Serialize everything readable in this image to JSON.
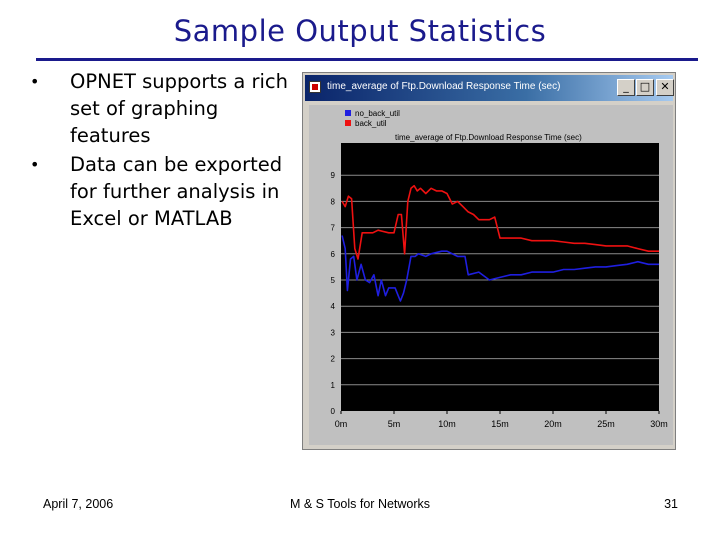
{
  "slide": {
    "title": "Sample Output Statistics",
    "bullets": [
      "OPNET supports a rich set of graphing features",
      "Data can be exported for further analysis in Excel or MATLAB"
    ],
    "footer": {
      "date": "April 7, 2006",
      "center": "M & S Tools for Networks",
      "page": "31"
    }
  },
  "window": {
    "title": "time_average of Ftp.Download Response Time (sec)",
    "buttons": {
      "minimize": "_",
      "maximize": "□",
      "close": "✕"
    }
  },
  "colors": {
    "title": "#1a1a8c",
    "series_blue": "#1f1fe0",
    "series_red": "#ee1111",
    "plot_bg": "#000000"
  },
  "chart_data": {
    "type": "line",
    "title": "time_average of Ftp.Download Response Time (sec)",
    "xlabel": "",
    "ylabel": "",
    "xlim": [
      0,
      30
    ],
    "ylim": [
      0,
      10
    ],
    "xticks": [
      "0m",
      "5m",
      "10m",
      "15m",
      "20m",
      "25m",
      "30m"
    ],
    "yticks": [
      "0",
      "1",
      "2",
      "3",
      "4",
      "5",
      "6",
      "7",
      "8",
      "9"
    ],
    "legend": [
      "no_back_util",
      "back_util"
    ],
    "series": [
      {
        "name": "no_back_util",
        "color": "#1f1fe0",
        "points": [
          [
            0.1,
            6.7
          ],
          [
            0.4,
            6.2
          ],
          [
            0.6,
            4.6
          ],
          [
            0.9,
            5.8
          ],
          [
            1.2,
            5.9
          ],
          [
            1.5,
            5.0
          ],
          [
            1.9,
            5.6
          ],
          [
            2.3,
            5.0
          ],
          [
            2.7,
            4.9
          ],
          [
            3.1,
            5.2
          ],
          [
            3.5,
            4.4
          ],
          [
            3.8,
            5.0
          ],
          [
            4.2,
            4.4
          ],
          [
            4.5,
            4.7
          ],
          [
            5.1,
            4.7
          ],
          [
            5.4,
            4.4
          ],
          [
            5.6,
            4.2
          ],
          [
            5.9,
            4.5
          ],
          [
            6.2,
            5.0
          ],
          [
            6.6,
            5.9
          ],
          [
            7.0,
            5.9
          ],
          [
            7.3,
            6.0
          ],
          [
            8.0,
            5.9
          ],
          [
            8.5,
            6.0
          ],
          [
            9.5,
            6.1
          ],
          [
            10.0,
            6.1
          ],
          [
            11.0,
            5.9
          ],
          [
            11.7,
            5.9
          ],
          [
            12.0,
            5.2
          ],
          [
            13.0,
            5.3
          ],
          [
            14.0,
            5.0
          ],
          [
            15.0,
            5.1
          ],
          [
            16.0,
            5.2
          ],
          [
            17.0,
            5.2
          ],
          [
            18.0,
            5.3
          ],
          [
            19.0,
            5.3
          ],
          [
            20.0,
            5.3
          ],
          [
            21.0,
            5.4
          ],
          [
            22.0,
            5.4
          ],
          [
            23.0,
            5.45
          ],
          [
            24.0,
            5.5
          ],
          [
            25.0,
            5.5
          ],
          [
            26.0,
            5.55
          ],
          [
            27.0,
            5.6
          ],
          [
            28.0,
            5.7
          ],
          [
            29.0,
            5.6
          ],
          [
            30.0,
            5.6
          ]
        ]
      },
      {
        "name": "back_util",
        "color": "#ee1111",
        "points": [
          [
            0.1,
            8.0
          ],
          [
            0.4,
            7.8
          ],
          [
            0.7,
            8.2
          ],
          [
            1.0,
            8.1
          ],
          [
            1.3,
            6.2
          ],
          [
            1.6,
            5.8
          ],
          [
            2.0,
            6.8
          ],
          [
            2.5,
            6.8
          ],
          [
            3.0,
            6.8
          ],
          [
            3.5,
            6.9
          ],
          [
            4.5,
            6.8
          ],
          [
            5.0,
            6.8
          ],
          [
            5.4,
            7.5
          ],
          [
            5.7,
            7.5
          ],
          [
            6.0,
            6.0
          ],
          [
            6.3,
            8.0
          ],
          [
            6.6,
            8.5
          ],
          [
            6.9,
            8.6
          ],
          [
            7.2,
            8.4
          ],
          [
            7.5,
            8.5
          ],
          [
            8.0,
            8.3
          ],
          [
            8.5,
            8.5
          ],
          [
            9.0,
            8.4
          ],
          [
            9.5,
            8.4
          ],
          [
            10.0,
            8.3
          ],
          [
            10.5,
            7.9
          ],
          [
            11.0,
            8.0
          ],
          [
            11.5,
            7.8
          ],
          [
            12.0,
            7.6
          ],
          [
            12.5,
            7.5
          ],
          [
            13.0,
            7.3
          ],
          [
            13.5,
            7.3
          ],
          [
            14.0,
            7.3
          ],
          [
            14.5,
            7.4
          ],
          [
            15.0,
            6.6
          ],
          [
            16.0,
            6.6
          ],
          [
            17.0,
            6.6
          ],
          [
            18.0,
            6.5
          ],
          [
            19.0,
            6.5
          ],
          [
            20.0,
            6.5
          ],
          [
            21.0,
            6.45
          ],
          [
            22.0,
            6.4
          ],
          [
            23.0,
            6.4
          ],
          [
            24.0,
            6.35
          ],
          [
            25.0,
            6.3
          ],
          [
            26.0,
            6.3
          ],
          [
            27.0,
            6.3
          ],
          [
            28.0,
            6.2
          ],
          [
            29.0,
            6.1
          ],
          [
            30.0,
            6.1
          ]
        ]
      }
    ]
  }
}
